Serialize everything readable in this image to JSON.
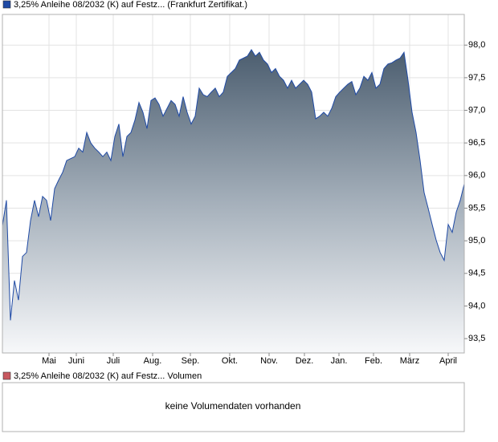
{
  "chart_data": {
    "type": "area",
    "series": [
      {
        "name": "3,25% Anleihe 08/2032 (K) auf Festz... (Frankfurt Zertifikat.)",
        "color": "#1f4aa5",
        "values": [
          95.23,
          95.62,
          93.78,
          94.39,
          94.09,
          94.76,
          94.82,
          95.31,
          95.62,
          95.37,
          95.68,
          95.62,
          95.31,
          95.8,
          95.93,
          96.05,
          96.23,
          96.26,
          96.29,
          96.42,
          96.36,
          96.66,
          96.5,
          96.42,
          96.36,
          96.29,
          96.36,
          96.23,
          96.6,
          96.79,
          96.29,
          96.6,
          96.66,
          96.85,
          97.12,
          96.97,
          96.72,
          97.15,
          97.19,
          97.09,
          96.91,
          97.03,
          97.15,
          97.09,
          96.91,
          97.21,
          96.97,
          96.79,
          96.91,
          97.34,
          97.24,
          97.21,
          97.28,
          97.34,
          97.21,
          97.28,
          97.52,
          97.58,
          97.64,
          97.77,
          97.8,
          97.83,
          97.93,
          97.83,
          97.89,
          97.77,
          97.71,
          97.58,
          97.64,
          97.52,
          97.46,
          97.34,
          97.46,
          97.34,
          97.4,
          97.46,
          97.4,
          97.28,
          96.87,
          96.91,
          96.97,
          96.91,
          97.03,
          97.21,
          97.28,
          97.34,
          97.4,
          97.44,
          97.24,
          97.34,
          97.52,
          97.46,
          97.58,
          97.34,
          97.4,
          97.64,
          97.71,
          97.73,
          97.77,
          97.8,
          97.89,
          97.46,
          96.97,
          96.66,
          96.23,
          95.74,
          95.5,
          95.25,
          95.01,
          94.82,
          94.7,
          95.25,
          95.13,
          95.44,
          95.62,
          95.87
        ]
      }
    ],
    "x": [
      0,
      1,
      2,
      3,
      4,
      5,
      6,
      7,
      8,
      9,
      10,
      11,
      12,
      13,
      14,
      15,
      16,
      17,
      18,
      19,
      20,
      21,
      22,
      23,
      24,
      25,
      26,
      27,
      28,
      29,
      30,
      31,
      32,
      33,
      34,
      35,
      36,
      37,
      38,
      39,
      40,
      41,
      42,
      43,
      44,
      45,
      46,
      47,
      48,
      49,
      50,
      51,
      52,
      53,
      54,
      55,
      56,
      57,
      58,
      59,
      60,
      61,
      62,
      63,
      64,
      65,
      66,
      67,
      68,
      69,
      70,
      71,
      72,
      73,
      74,
      75,
      76,
      77,
      78,
      79,
      80,
      81,
      82,
      83,
      84,
      85,
      86,
      87,
      88,
      89,
      90,
      91,
      92,
      93,
      94,
      95,
      96,
      97,
      98,
      99,
      100,
      101,
      102,
      103,
      104,
      105,
      106,
      107,
      108,
      109,
      110,
      111,
      112,
      113,
      114,
      115
    ],
    "xlim": [
      0,
      115
    ],
    "xticks": [
      {
        "value": 11.6,
        "label": "Mai"
      },
      {
        "value": 18.4,
        "label": "Juni"
      },
      {
        "value": 27.6,
        "label": "Juli"
      },
      {
        "value": 37.4,
        "label": "Aug."
      },
      {
        "value": 46.8,
        "label": "Sep."
      },
      {
        "value": 56.6,
        "label": "Okt."
      },
      {
        "value": 66.4,
        "label": "Nov."
      },
      {
        "value": 75.2,
        "label": "Dez."
      },
      {
        "value": 83.8,
        "label": "Jan."
      },
      {
        "value": 92.4,
        "label": "Feb."
      },
      {
        "value": 101.4,
        "label": "März"
      },
      {
        "value": 111,
        "label": "April"
      }
    ],
    "ylim": [
      93.28,
      98.47
    ],
    "yticks": [
      {
        "value": 93.5,
        "label": "93,5"
      },
      {
        "value": 94,
        "label": "94,0"
      },
      {
        "value": 94.5,
        "label": "94,5"
      },
      {
        "value": 95,
        "label": "95,0"
      },
      {
        "value": 95.5,
        "label": "95,5"
      },
      {
        "value": 96,
        "label": "96,0"
      },
      {
        "value": 96.5,
        "label": "96,5"
      },
      {
        "value": 97,
        "label": "97,0"
      },
      {
        "value": 97.5,
        "label": "97,5"
      },
      {
        "value": 98,
        "label": "98,0"
      }
    ],
    "grid": true
  },
  "volume_panel": {
    "legend": "3,25% Anleihe 08/2032 (K) auf Festz... Volumen",
    "legend_color": "#c8585f",
    "message": "keine Volumendaten vorhanden"
  }
}
